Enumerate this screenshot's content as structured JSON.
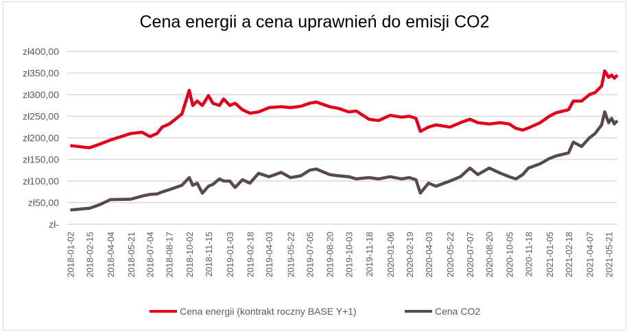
{
  "chart_data": {
    "type": "line",
    "title": "Cena energii a cena uprawnień do emisji CO2",
    "xlabel": "",
    "ylabel": "",
    "ylim": [
      0,
      400
    ],
    "yticks": [
      0,
      50,
      100,
      150,
      200,
      250,
      300,
      350,
      400
    ],
    "ytick_labels": [
      "zł-",
      "zł50,00",
      "zł100,00",
      "zł150,00",
      "zł200,00",
      "zł250,00",
      "zł300,00",
      "zł350,00",
      "zł400,00"
    ],
    "xtick_labels": [
      "2018-01-02",
      "2018-02-15",
      "2018-04-04",
      "2018-05-21",
      "2018-07-04",
      "2018-08-17",
      "2018-10-02",
      "2018-11-15",
      "2019-01-03",
      "2019-02-18",
      "2019-04-03",
      "2019-05-22",
      "2019-07-05",
      "2019-08-20",
      "2019-10-03",
      "2019-11-18",
      "2020-01-06",
      "2020-02-19",
      "2020-04-03",
      "2020-05-22",
      "2020-07-07",
      "2020-08-20",
      "2020-10-05",
      "2020-11-18",
      "2021-01-05",
      "2021-02-18",
      "2021-04-07",
      "2021-05-21"
    ],
    "grid": true,
    "legend": "bottom",
    "x": [
      "2018-01-02",
      "2018-02-15",
      "2018-03-10",
      "2018-04-04",
      "2018-05-21",
      "2018-06-15",
      "2018-07-04",
      "2018-07-20",
      "2018-08-01",
      "2018-08-17",
      "2018-09-15",
      "2018-10-02",
      "2018-10-10",
      "2018-10-20",
      "2018-11-01",
      "2018-11-15",
      "2018-11-25",
      "2018-12-10",
      "2018-12-20",
      "2019-01-03",
      "2019-01-15",
      "2019-02-01",
      "2019-02-18",
      "2019-03-10",
      "2019-04-03",
      "2019-05-01",
      "2019-05-22",
      "2019-06-15",
      "2019-07-05",
      "2019-07-20",
      "2019-08-20",
      "2019-09-10",
      "2019-10-03",
      "2019-10-20",
      "2019-11-18",
      "2019-12-10",
      "2020-01-06",
      "2020-02-01",
      "2020-02-19",
      "2020-03-05",
      "2020-03-15",
      "2020-04-03",
      "2020-04-20",
      "2020-05-22",
      "2020-06-15",
      "2020-07-07",
      "2020-07-25",
      "2020-08-20",
      "2020-09-15",
      "2020-10-05",
      "2020-10-20",
      "2020-11-05",
      "2020-11-18",
      "2020-12-15",
      "2021-01-05",
      "2021-01-20",
      "2021-02-18",
      "2021-03-01",
      "2021-03-20",
      "2021-04-07",
      "2021-04-20",
      "2021-05-05",
      "2021-05-12",
      "2021-05-21",
      "2021-05-28",
      "2021-06-03",
      "2021-06-10"
    ],
    "series": [
      {
        "name": "Cena energii (kontrakt roczny BASE Y+1)",
        "color": "#E2001A",
        "values": [
          182,
          177,
          185,
          195,
          210,
          213,
          203,
          210,
          225,
          232,
          255,
          310,
          275,
          285,
          275,
          298,
          280,
          275,
          290,
          275,
          280,
          265,
          257,
          260,
          270,
          272,
          270,
          273,
          280,
          283,
          272,
          268,
          260,
          262,
          243,
          240,
          252,
          248,
          250,
          245,
          215,
          225,
          230,
          225,
          235,
          243,
          235,
          232,
          235,
          232,
          222,
          218,
          223,
          235,
          250,
          258,
          265,
          285,
          285,
          300,
          305,
          320,
          355,
          340,
          345,
          338,
          345
        ]
      },
      {
        "name": "Cena CO2",
        "color": "#594A4A",
        "values": [
          33,
          37,
          45,
          57,
          58,
          65,
          69,
          70,
          75,
          80,
          90,
          108,
          90,
          95,
          72,
          88,
          92,
          105,
          100,
          100,
          85,
          103,
          95,
          118,
          110,
          120,
          108,
          112,
          125,
          128,
          115,
          112,
          110,
          105,
          108,
          105,
          110,
          105,
          108,
          103,
          72,
          95,
          88,
          100,
          110,
          130,
          115,
          130,
          118,
          110,
          105,
          115,
          130,
          140,
          152,
          158,
          165,
          190,
          180,
          200,
          210,
          230,
          260,
          235,
          245,
          232,
          240
        ]
      }
    ]
  }
}
